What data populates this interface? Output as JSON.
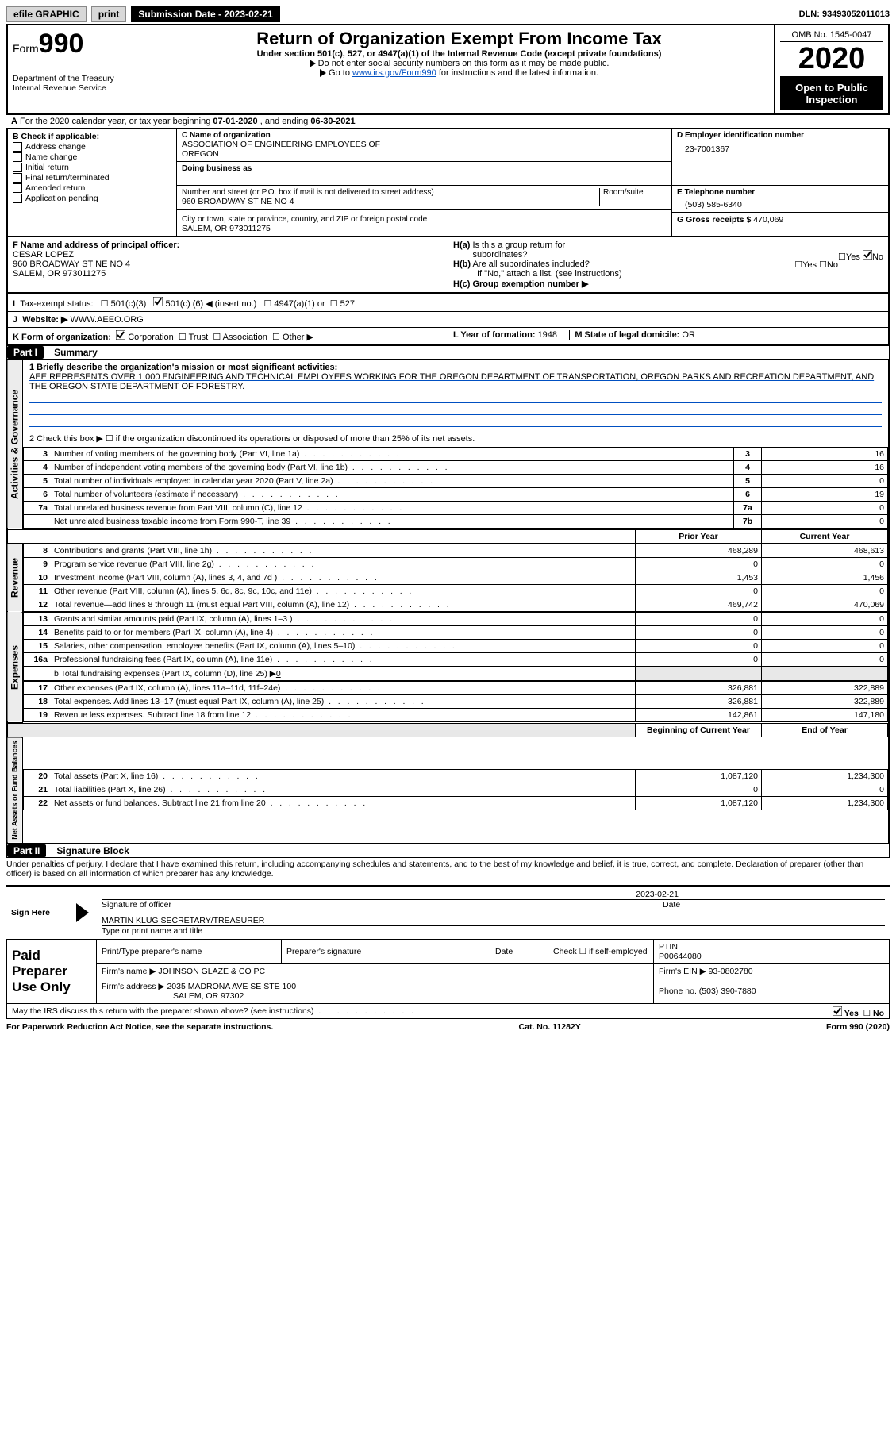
{
  "topbar": {
    "efile": "efile GRAPHIC",
    "print": "print",
    "sub_date_label": "Submission Date - ",
    "sub_date": "2023-02-21",
    "dln_label": "DLN: ",
    "dln": "93493052011013"
  },
  "header": {
    "form_prefix": "Form",
    "form_number": "990",
    "main_title": "Return of Organization Exempt From Income Tax",
    "subtitle": "Under section 501(c), 527, or 4947(a)(1) of the Internal Revenue Code (except private foundations)",
    "note1": "Do not enter social security numbers on this form as it may be made public.",
    "note2_prefix": "Go to ",
    "note2_link": "www.irs.gov/Form990",
    "note2_suffix": " for instructions and the latest information.",
    "dept": "Department of the Treasury",
    "irs": "Internal Revenue Service",
    "omb": "OMB No. 1545-0047",
    "year": "2020",
    "open_public": "Open to Public Inspection"
  },
  "lineA": {
    "prefix": "A",
    "text1": "For the 2020 calendar year, or tax year beginning ",
    "begin": "07-01-2020",
    "text2": ", and ending ",
    "end": "06-30-2021"
  },
  "boxB": {
    "label": "B Check if applicable:",
    "items": [
      "Address change",
      "Name change",
      "Initial return",
      "Final return/terminated",
      "Amended return",
      "Application pending"
    ]
  },
  "org": {
    "c_label": "C Name of organization",
    "name1": "ASSOCIATION OF ENGINEERING EMPLOYEES OF",
    "name2": "OREGON",
    "dba_label": "Doing business as",
    "addr_label": "Number and street (or P.O. box if mail is not delivered to street address)",
    "room_label": "Room/suite",
    "addr": "960 BROADWAY ST NE NO 4",
    "city_label": "City or town, state or province, country, and ZIP or foreign postal code",
    "city": "SALEM, OR  973011275"
  },
  "right": {
    "d_label": "D Employer identification number",
    "ein": "23-7001367",
    "e_label": "E Telephone number",
    "phone": "(503) 585-6340",
    "g_label": "G Gross receipts $ ",
    "gross": "470,069"
  },
  "boxF": {
    "label": "F Name and address of principal officer:",
    "name": "CESAR LOPEZ",
    "addr": "960 BROADWAY ST NE NO 4",
    "city": "SALEM, OR  973011275"
  },
  "boxH": {
    "a_label": "H(a)  Is this a group return for subordinates?",
    "b_label": "H(b)  Are all subordinates included?",
    "b_note": "If \"No,\" attach a list. (see instructions)",
    "c_label": "H(c)  Group exemption number ▶",
    "yes": "Yes",
    "no": "No"
  },
  "boxI": {
    "label": "I",
    "tax": "Tax-exempt status:",
    "o1": "501(c)(3)",
    "o2_prefix": "501(c) (",
    "o2_num": "6",
    "o2_suffix": ") ◀ (insert no.)",
    "o3": "4947(a)(1) or",
    "o4": "527"
  },
  "boxJ": {
    "label": "J",
    "website_label": "Website: ▶",
    "website": "WWW.AEEO.ORG"
  },
  "boxK": {
    "label": "K Form of organization:",
    "o1": "Corporation",
    "o2": "Trust",
    "o3": "Association",
    "o4": "Other ▶"
  },
  "boxL": {
    "label": "L Year of formation: ",
    "val": "1948"
  },
  "boxM": {
    "label": "M State of legal domicile: ",
    "val": "OR"
  },
  "part1": {
    "label": "Part I",
    "title": "Summary",
    "q1": "1   Briefly describe the organization's mission or most significant activities:",
    "mission": "AEE REPRESENTS OVER 1,000 ENGINEERING AND TECHNICAL EMPLOYEES WORKING FOR THE OREGON DEPARTMENT OF TRANSPORTATION, OREGON PARKS AND RECREATION DEPARTMENT, AND THE OREGON STATE DEPARTMENT OF FORESTRY.",
    "q2": "2   Check this box ▶ ☐ if the organization discontinued its operations or disposed of more than 25% of its net assets.",
    "lines": [
      {
        "n": "3",
        "d": "Number of voting members of the governing body (Part VI, line 1a)",
        "box": "3",
        "v": "16"
      },
      {
        "n": "4",
        "d": "Number of independent voting members of the governing body (Part VI, line 1b)",
        "box": "4",
        "v": "16"
      },
      {
        "n": "5",
        "d": "Total number of individuals employed in calendar year 2020 (Part V, line 2a)",
        "box": "5",
        "v": "0"
      },
      {
        "n": "6",
        "d": "Total number of volunteers (estimate if necessary)",
        "box": "6",
        "v": "19"
      },
      {
        "n": "7a",
        "d": "Total unrelated business revenue from Part VIII, column (C), line 12",
        "box": "7a",
        "v": "0"
      },
      {
        "n": "",
        "d": "Net unrelated business taxable income from Form 990-T, line 39",
        "box": "7b",
        "v": "0"
      }
    ],
    "prior": "Prior Year",
    "current": "Current Year",
    "revenue_label": "Revenue",
    "rev": [
      {
        "n": "8",
        "d": "Contributions and grants (Part VIII, line 1h)",
        "p": "468,289",
        "c": "468,613"
      },
      {
        "n": "9",
        "d": "Program service revenue (Part VIII, line 2g)",
        "p": "0",
        "c": "0"
      },
      {
        "n": "10",
        "d": "Investment income (Part VIII, column (A), lines 3, 4, and 7d )",
        "p": "1,453",
        "c": "1,456"
      },
      {
        "n": "11",
        "d": "Other revenue (Part VIII, column (A), lines 5, 6d, 8c, 9c, 10c, and 11e)",
        "p": "0",
        "c": "0"
      },
      {
        "n": "12",
        "d": "Total revenue—add lines 8 through 11 (must equal Part VIII, column (A), line 12)",
        "p": "469,742",
        "c": "470,069"
      }
    ],
    "expenses_label": "Expenses",
    "exp": [
      {
        "n": "13",
        "d": "Grants and similar amounts paid (Part IX, column (A), lines 1–3 )",
        "p": "0",
        "c": "0"
      },
      {
        "n": "14",
        "d": "Benefits paid to or for members (Part IX, column (A), line 4)",
        "p": "0",
        "c": "0"
      },
      {
        "n": "15",
        "d": "Salaries, other compensation, employee benefits (Part IX, column (A), lines 5–10)",
        "p": "0",
        "c": "0"
      },
      {
        "n": "16a",
        "d": "Professional fundraising fees (Part IX, column (A), line 11e)",
        "p": "0",
        "c": "0"
      }
    ],
    "exp16b_prefix": "b   Total fundraising expenses (Part IX, column (D), line 25) ▶",
    "exp16b_val": "0",
    "exp2": [
      {
        "n": "17",
        "d": "Other expenses (Part IX, column (A), lines 11a–11d, 11f–24e)",
        "p": "326,881",
        "c": "322,889"
      },
      {
        "n": "18",
        "d": "Total expenses. Add lines 13–17 (must equal Part IX, column (A), line 25)",
        "p": "326,881",
        "c": "322,889"
      },
      {
        "n": "19",
        "d": "Revenue less expenses. Subtract line 18 from line 12",
        "p": "142,861",
        "c": "147,180"
      }
    ],
    "boy": "Beginning of Current Year",
    "eoy": "End of Year",
    "net_label": "Net Assets or Fund Balances",
    "net": [
      {
        "n": "20",
        "d": "Total assets (Part X, line 16)",
        "p": "1,087,120",
        "c": "1,234,300"
      },
      {
        "n": "21",
        "d": "Total liabilities (Part X, line 26)",
        "p": "0",
        "c": "0"
      },
      {
        "n": "22",
        "d": "Net assets or fund balances. Subtract line 21 from line 20",
        "p": "1,087,120",
        "c": "1,234,300"
      }
    ]
  },
  "part2": {
    "label": "Part II",
    "title": "Signature Block",
    "declaration": "Under penalties of perjury, I declare that I have examined this return, including accompanying schedules and statements, and to the best of my knowledge and belief, it is true, correct, and complete. Declaration of preparer (other than officer) is based on all information of which preparer has any knowledge.",
    "sign_here": "Sign Here",
    "sig_officer": "Signature of officer",
    "sig_date_label": "Date",
    "sig_date": "2023-02-21",
    "officer_name": "MARTIN KLUG  SECRETARY/TREASURER",
    "officer_type": "Type or print name and title",
    "paid_label": "Paid Preparer Use Only",
    "prep_name_label": "Print/Type preparer's name",
    "prep_sig_label": "Preparer's signature",
    "date_label": "Date",
    "self_emp": "Check ☐ if self-employed",
    "ptin_label": "PTIN",
    "ptin": "P00644080",
    "firm_name_label": "Firm's name   ▶ ",
    "firm_name": "JOHNSON GLAZE & CO PC",
    "firm_ein_label": "Firm's EIN ▶ ",
    "firm_ein": "93-0802780",
    "firm_addr_label": "Firm's address ▶ ",
    "firm_addr1": "2035 MADRONA AVE SE STE 100",
    "firm_addr2": "SALEM, OR  97302",
    "phone_label": "Phone no. ",
    "phone": "(503) 390-7880",
    "discuss": "May the IRS discuss this return with the preparer shown above? (see instructions)",
    "yes": "Yes",
    "no": "No"
  },
  "footer": {
    "left": "For Paperwork Reduction Act Notice, see the separate instructions.",
    "mid": "Cat. No. 11282Y",
    "right": "Form 990 (2020)"
  },
  "side_labels": {
    "gov": "Activities & Governance",
    "rev": "Revenue",
    "exp": "Expenses",
    "net": "Net Assets or Fund Balances"
  },
  "colors": {
    "accent": "#004fc1",
    "shade": "#e8e8e8",
    "border": "#000000",
    "btn_gray": "#d8d8d8"
  }
}
